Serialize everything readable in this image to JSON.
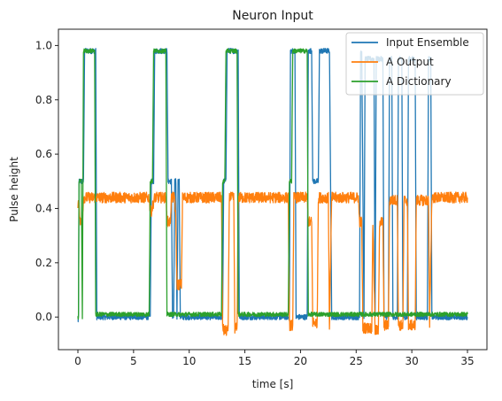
{
  "chart_data": {
    "type": "line",
    "title": "Neuron Input",
    "xlabel": "time [s]",
    "ylabel": "Pulse height",
    "xlim": [
      -1.75,
      36.75
    ],
    "ylim": [
      -0.12,
      1.06
    ],
    "xticks": [
      0,
      5,
      10,
      15,
      20,
      25,
      30,
      35
    ],
    "yticks": [
      0.0,
      0.2,
      0.4,
      0.6,
      0.8,
      1.0
    ],
    "xtick_labels": [
      "0",
      "5",
      "10",
      "15",
      "20",
      "25",
      "30",
      "35"
    ],
    "ytick_labels": [
      "0.0",
      "0.2",
      "0.4",
      "0.6",
      "0.8",
      "1.0"
    ],
    "grid": false,
    "legend_position": "top-right",
    "series": [
      {
        "name": "Input Ensemble",
        "color": "#1f77b4",
        "noise": 0.01,
        "x": [
          0,
          0.05,
          0.1,
          0.3,
          0.5,
          0.6,
          0.8,
          1.6,
          1.7,
          1.8,
          6.5,
          6.6,
          6.8,
          6.9,
          7.1,
          8.0,
          8.1,
          8.4,
          8.5,
          8.6,
          8.7,
          8.8,
          8.9,
          9.0,
          9.1,
          9.2,
          9.3,
          9.6,
          13.0,
          13.1,
          13.3,
          13.4,
          13.6,
          14.4,
          14.5,
          19.0,
          19.1,
          19.2,
          19.5,
          19.6,
          20.6,
          20.7,
          21.0,
          21.1,
          21.6,
          21.7,
          22.6,
          22.7,
          22.8,
          25.3,
          25.4,
          25.5,
          25.7,
          25.8,
          26.6,
          26.7,
          26.8,
          27.4,
          27.5,
          27.9,
          28.0,
          28.2,
          28.3,
          28.7,
          28.8,
          29.1,
          29.2,
          29.6,
          29.7,
          30.3,
          30.4,
          31.4,
          31.5,
          31.7,
          31.8,
          35
        ],
        "y": [
          -0.02,
          0.0,
          0.5,
          0.5,
          0.5,
          0.98,
          0.98,
          0.98,
          0.0,
          0.0,
          0.0,
          0.5,
          0.5,
          0.98,
          0.98,
          0.98,
          0.5,
          0.5,
          0.0,
          0.0,
          0.5,
          0.5,
          0.0,
          0.5,
          0.5,
          0.0,
          0.0,
          0.0,
          0.0,
          0.5,
          0.5,
          0.98,
          0.98,
          0.98,
          0.0,
          0.0,
          0.98,
          0.98,
          0.98,
          0.0,
          0.0,
          0.98,
          0.98,
          0.5,
          0.5,
          0.98,
          0.98,
          0.5,
          0.0,
          0.0,
          0.98,
          0.98,
          0.0,
          0.95,
          0.95,
          0.0,
          0.95,
          0.95,
          0.0,
          0.0,
          0.95,
          0.95,
          0.0,
          0.0,
          0.95,
          0.95,
          0.0,
          0.0,
          0.95,
          0.95,
          0.0,
          0.0,
          0.95,
          0.95,
          0.0,
          0.0
        ]
      },
      {
        "name": "A Output",
        "color": "#ff7f0e",
        "noise": 0.02,
        "x": [
          0,
          0.1,
          0.2,
          0.4,
          0.5,
          1.5,
          1.6,
          6.4,
          6.5,
          6.6,
          6.9,
          7.0,
          7.9,
          8.0,
          8.1,
          8.3,
          8.4,
          8.7,
          8.8,
          8.9,
          9.0,
          9.3,
          9.4,
          12.9,
          13.0,
          13.1,
          13.5,
          13.6,
          14.0,
          14.1,
          14.3,
          14.4,
          18.9,
          19.0,
          19.3,
          19.4,
          20.6,
          20.7,
          21.0,
          21.1,
          21.5,
          21.6,
          22.5,
          22.6,
          22.8,
          25.2,
          25.3,
          25.5,
          25.6,
          26.4,
          26.5,
          26.7,
          27.0,
          27.1,
          27.4,
          27.5,
          27.9,
          28.0,
          28.7,
          28.8,
          29.2,
          29.3,
          29.6,
          29.7,
          30.3,
          30.4,
          31.5,
          31.6,
          31.8,
          35
        ],
        "y": [
          0.42,
          0.42,
          0.35,
          0.35,
          0.44,
          0.44,
          0.44,
          0.44,
          0.39,
          0.39,
          0.44,
          0.44,
          0.44,
          0.36,
          0.35,
          0.35,
          0.44,
          0.44,
          0.35,
          0.12,
          0.12,
          0.12,
          0.44,
          0.44,
          -0.03,
          -0.05,
          -0.05,
          0.44,
          0.44,
          -0.04,
          -0.04,
          0.44,
          0.44,
          -0.03,
          -0.03,
          0.44,
          0.44,
          0.35,
          0.35,
          -0.02,
          -0.02,
          0.44,
          0.44,
          -0.04,
          0.44,
          0.44,
          0.35,
          0.35,
          -0.04,
          -0.04,
          0.35,
          -0.05,
          -0.05,
          0.35,
          0.35,
          -0.03,
          -0.03,
          0.43,
          0.43,
          -0.03,
          -0.03,
          0.43,
          0.43,
          -0.03,
          -0.03,
          0.43,
          0.43,
          -0.03,
          0.44,
          0.44
        ]
      },
      {
        "name": "A Dictionary",
        "color": "#2ca02c",
        "noise": 0.008,
        "x": [
          0,
          0.05,
          0.1,
          0.3,
          0.4,
          0.5,
          0.7,
          1.5,
          1.6,
          6.4,
          6.5,
          6.7,
          6.8,
          7.0,
          7.9,
          8.0,
          8.2,
          12.9,
          13.0,
          13.2,
          13.3,
          13.5,
          14.3,
          14.4,
          18.9,
          19.0,
          19.2,
          19.3,
          19.5,
          20.6,
          20.7,
          22.7,
          22.8,
          35
        ],
        "y": [
          0.0,
          0.0,
          0.5,
          0.5,
          0.0,
          0.98,
          0.98,
          0.98,
          0.01,
          0.01,
          0.5,
          0.5,
          0.98,
          0.98,
          0.98,
          0.01,
          0.01,
          0.01,
          0.5,
          0.5,
          0.98,
          0.98,
          0.98,
          0.01,
          0.01,
          0.5,
          0.5,
          0.98,
          0.98,
          0.98,
          0.01,
          0.01,
          0.01,
          0.01
        ]
      }
    ]
  }
}
